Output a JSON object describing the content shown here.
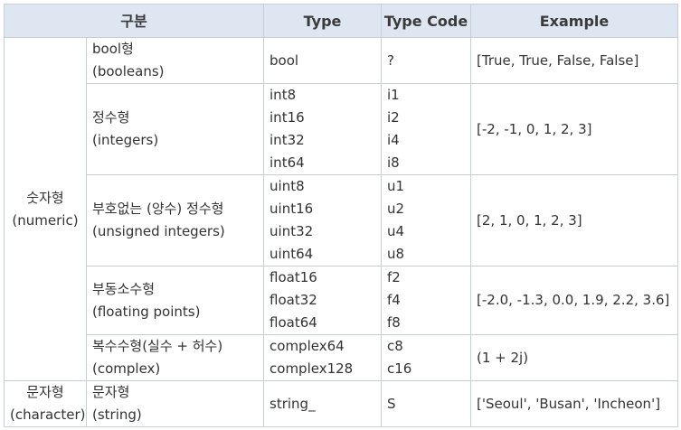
{
  "headers": {
    "category": "구분",
    "type": "Type",
    "type_code": "Type Code",
    "example": "Example"
  },
  "groups": {
    "numeric": {
      "line1": "숫자형",
      "line2": "(numeric)"
    },
    "character": {
      "line1": "문자형",
      "line2": "(character)"
    }
  },
  "rows": [
    {
      "sub": [
        "bool형",
        "(booleans)"
      ],
      "types": [
        "bool"
      ],
      "codes": [
        "?"
      ],
      "example": "[True, True, False, False]"
    },
    {
      "sub": [
        "정수형",
        "(integers)"
      ],
      "types": [
        "int8",
        "int16",
        "int32",
        "int64"
      ],
      "codes": [
        "i1",
        "i2",
        "i4",
        "i8"
      ],
      "example": "[-2, -1, 0, 1, 2, 3]"
    },
    {
      "sub": [
        "부호없는 (양수) 정수형",
        "(unsigned integers)"
      ],
      "types": [
        "uint8",
        "uint16",
        "uint32",
        "uint64"
      ],
      "codes": [
        "u1",
        "u2",
        "u4",
        "u8"
      ],
      "example": "[2, 1, 0, 1, 2, 3]"
    },
    {
      "sub": [
        "부동소수형",
        "(floating points)"
      ],
      "types": [
        "float16",
        "float32",
        "float64"
      ],
      "codes": [
        "f2",
        "f4",
        "f8"
      ],
      "example": "[-2.0, -1.3, 0.0, 1.9, 2.2, 3.6]"
    },
    {
      "sub": [
        "복수수형(실수 + 허수)",
        "(complex)"
      ],
      "types": [
        "complex64",
        "complex128"
      ],
      "codes": [
        "c8",
        "c16"
      ],
      "example": "(1 + 2j)"
    },
    {
      "sub": [
        "문자형",
        "(string)"
      ],
      "types": [
        "string_"
      ],
      "codes": [
        "S"
      ],
      "example": "['Seoul', 'Busan', 'Incheon']"
    }
  ]
}
